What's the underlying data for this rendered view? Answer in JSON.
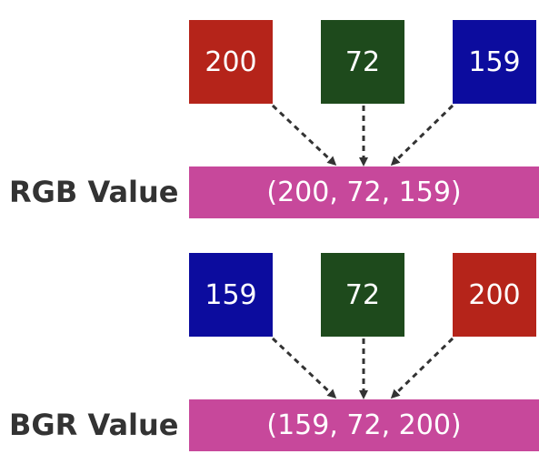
{
  "colors": {
    "red": "#b5241a",
    "green": "#1e4a1c",
    "blue": "#0c0c9e",
    "pink": "#c7489b",
    "arrow": "#333333",
    "label": "#333333"
  },
  "rgb": {
    "label": "RGB Value",
    "channels": [
      {
        "value": "200",
        "color": "red"
      },
      {
        "value": "72",
        "color": "green"
      },
      {
        "value": "159",
        "color": "blue"
      }
    ],
    "tuple": "(200, 72, 159)"
  },
  "bgr": {
    "label": "BGR Value",
    "channels": [
      {
        "value": "159",
        "color": "blue"
      },
      {
        "value": "72",
        "color": "green"
      },
      {
        "value": "200",
        "color": "red"
      }
    ],
    "tuple": "(159, 72, 200)"
  }
}
